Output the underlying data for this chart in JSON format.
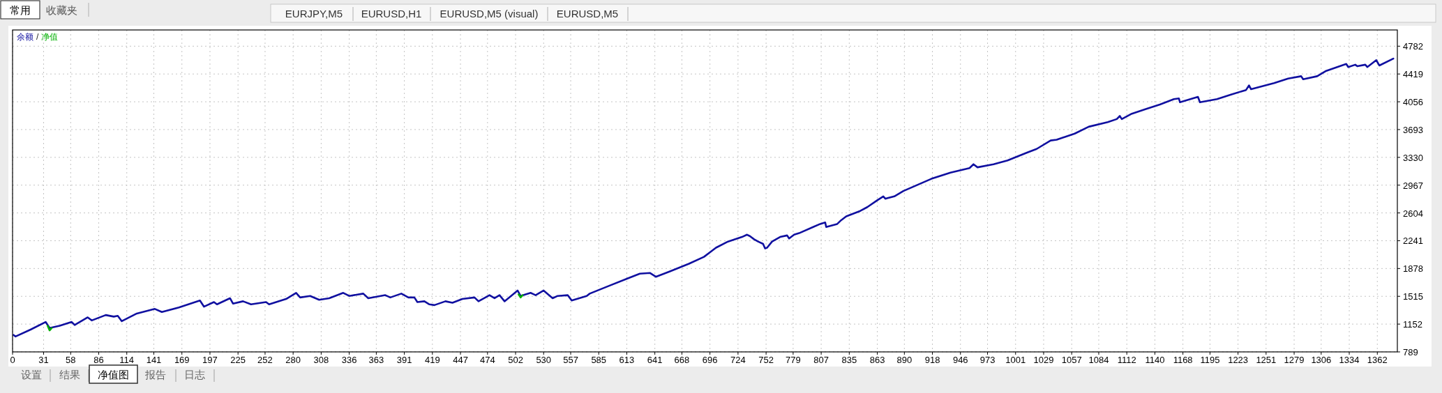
{
  "chart_data": {
    "type": "line",
    "legend": "top left",
    "grid": true,
    "xlim": [
      0,
      1382
    ],
    "xticks": [
      0,
      31,
      58,
      86,
      114,
      141,
      169,
      197,
      225,
      252,
      280,
      308,
      336,
      363,
      391,
      419,
      447,
      474,
      502,
      530,
      557,
      585,
      613,
      641,
      668,
      696,
      724,
      752,
      779,
      807,
      835,
      863,
      890,
      918,
      946,
      973,
      1001,
      1029,
      1057,
      1084,
      1112,
      1140,
      1168,
      1195,
      1223,
      1251,
      1279,
      1306,
      1334,
      1362
    ],
    "ylim": [
      789,
      4994
    ],
    "yticks": [
      789,
      1152,
      1515,
      1878,
      2241,
      2604,
      2967,
      3330,
      3693,
      4056,
      4419,
      4782
    ],
    "series": [
      {
        "name": "余额",
        "color": "#1010a0",
        "x": [
          1,
          3,
          18,
          33,
          37,
          47,
          59,
          62,
          75,
          79,
          93,
          101,
          105,
          109,
          124,
          142,
          149,
          166,
          187,
          191,
          201,
          204,
          217,
          220,
          230,
          238,
          253,
          256,
          273,
          283,
          287,
          297,
          306,
          316,
          330,
          336,
          350,
          355,
          372,
          377,
          388,
          395,
          401,
          404,
          411,
          416,
          421,
          432,
          439,
          449,
          461,
          465,
          476,
          481,
          486,
          491,
          504,
          507,
          517,
          522,
          530,
          539,
          544,
          554,
          558,
          573,
          576,
          595,
          614,
          626,
          636,
          642,
          656,
          675,
          690,
          702,
          714,
          728,
          733,
          736,
          740,
          744,
          749,
          751,
          753,
          758,
          766,
          773,
          775,
          780,
          785,
          799,
          806,
          811,
          812,
          823,
          827,
          832,
          846,
          853,
          863,
          869,
          871,
          880,
          889,
          903,
          917,
          936,
          955,
          959,
          963,
          979,
          993,
          1012,
          1022,
          1036,
          1042,
          1060,
          1074,
          1093,
          1102,
          1105,
          1107,
          1117,
          1131,
          1145,
          1159,
          1164,
          1165,
          1183,
          1185,
          1202,
          1216,
          1231,
          1234,
          1236,
          1259,
          1273,
          1286,
          1288,
          1302,
          1311,
          1331,
          1333,
          1340,
          1342,
          1350,
          1352,
          1361,
          1364,
          1378
        ],
        "values": [
          1010,
          990,
          1080,
          1180,
          1100,
          1130,
          1180,
          1140,
          1240,
          1200,
          1270,
          1250,
          1260,
          1190,
          1290,
          1350,
          1310,
          1370,
          1460,
          1380,
          1440,
          1410,
          1490,
          1420,
          1450,
          1410,
          1440,
          1410,
          1480,
          1560,
          1500,
          1520,
          1470,
          1490,
          1560,
          1520,
          1550,
          1490,
          1530,
          1500,
          1550,
          1500,
          1500,
          1440,
          1450,
          1410,
          1400,
          1450,
          1430,
          1480,
          1500,
          1450,
          1530,
          1490,
          1530,
          1450,
          1590,
          1520,
          1560,
          1530,
          1590,
          1490,
          1520,
          1530,
          1460,
          1520,
          1550,
          1650,
          1750,
          1810,
          1820,
          1770,
          1840,
          1940,
          2030,
          2150,
          2230,
          2290,
          2320,
          2300,
          2260,
          2230,
          2200,
          2140,
          2150,
          2230,
          2290,
          2310,
          2270,
          2320,
          2340,
          2420,
          2460,
          2480,
          2420,
          2460,
          2510,
          2560,
          2630,
          2680,
          2770,
          2820,
          2790,
          2820,
          2890,
          2970,
          3050,
          3130,
          3190,
          3240,
          3200,
          3240,
          3290,
          3390,
          3440,
          3550,
          3560,
          3640,
          3730,
          3790,
          3830,
          3870,
          3830,
          3900,
          3960,
          4020,
          4090,
          4100,
          4050,
          4120,
          4050,
          4090,
          4150,
          4210,
          4270,
          4220,
          4300,
          4360,
          4390,
          4350,
          4390,
          4460,
          4550,
          4510,
          4540,
          4520,
          4540,
          4510,
          4600,
          4530,
          4620
        ]
      },
      {
        "name": "净值",
        "color": "#00b000",
        "x": [
          35,
          37,
          39
        ],
        "values": [
          1130,
          1070,
          1100
        ]
      },
      {
        "color": "#00b000",
        "x": [
          505,
          507,
          509
        ],
        "values": [
          1540,
          1500,
          1530
        ]
      }
    ],
    "annotations": [
      "常用",
      "收藏夹",
      "EURJPY,M5",
      "EURUSD,H1",
      "EURUSD,M5 (visual)",
      "EURUSD,M5",
      "设置",
      "结果",
      "净值图",
      "报告",
      "日志",
      "/"
    ]
  }
}
